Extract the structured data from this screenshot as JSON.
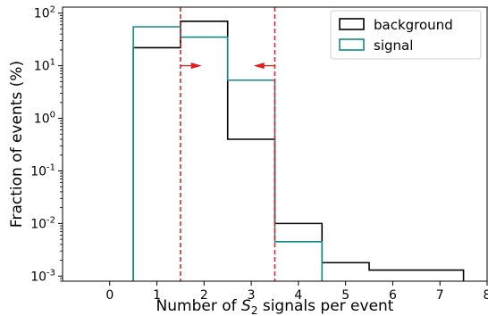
{
  "chart_data": {
    "type": "bar",
    "style": "step-histogram",
    "scale": {
      "x": "linear",
      "y": "log"
    },
    "xlabel_parts": [
      "Number of ",
      "S",
      "2",
      " signals per event"
    ],
    "ylabel": "Fraction of events (%)",
    "xlim": [
      -1,
      8
    ],
    "ylim": [
      0.0008,
      130
    ],
    "x_ticks": [
      0,
      1,
      2,
      3,
      4,
      5,
      6,
      7,
      8
    ],
    "x_tick_labels": [
      "0",
      "1",
      "2",
      "3",
      "4",
      "5",
      "6",
      "7",
      "8"
    ],
    "y_ticks": [
      0.001,
      0.01,
      0.1,
      1,
      10,
      100
    ],
    "y_tick_exponents": [
      "-3",
      "-2",
      "-1",
      "0",
      "1",
      "2"
    ],
    "y_tick_base": "10",
    "bin_edges": [
      0.5,
      1.5,
      2.5,
      3.5,
      4.5,
      5.5,
      6.5,
      7.5
    ],
    "series": [
      {
        "name": "background",
        "color": "#000000",
        "values": [
          22,
          70,
          0.4,
          0.01,
          0.0018,
          0.0013,
          0.0013
        ]
      },
      {
        "name": "signal",
        "color": "#138a8a",
        "values": [
          55,
          35,
          5.3,
          0.0045,
          null,
          null,
          null
        ]
      }
    ],
    "legend": {
      "position": "top-right"
    },
    "cut_lines": {
      "x": [
        1.5,
        3.5
      ],
      "color": "#e8191a",
      "style": "dashed"
    },
    "arrows": [
      {
        "from": 1.5,
        "to": 1.95,
        "y": 10,
        "color": "#e8191a"
      },
      {
        "from": 3.5,
        "to": 3.05,
        "y": 10,
        "color": "#e8191a"
      }
    ],
    "grid": false
  }
}
